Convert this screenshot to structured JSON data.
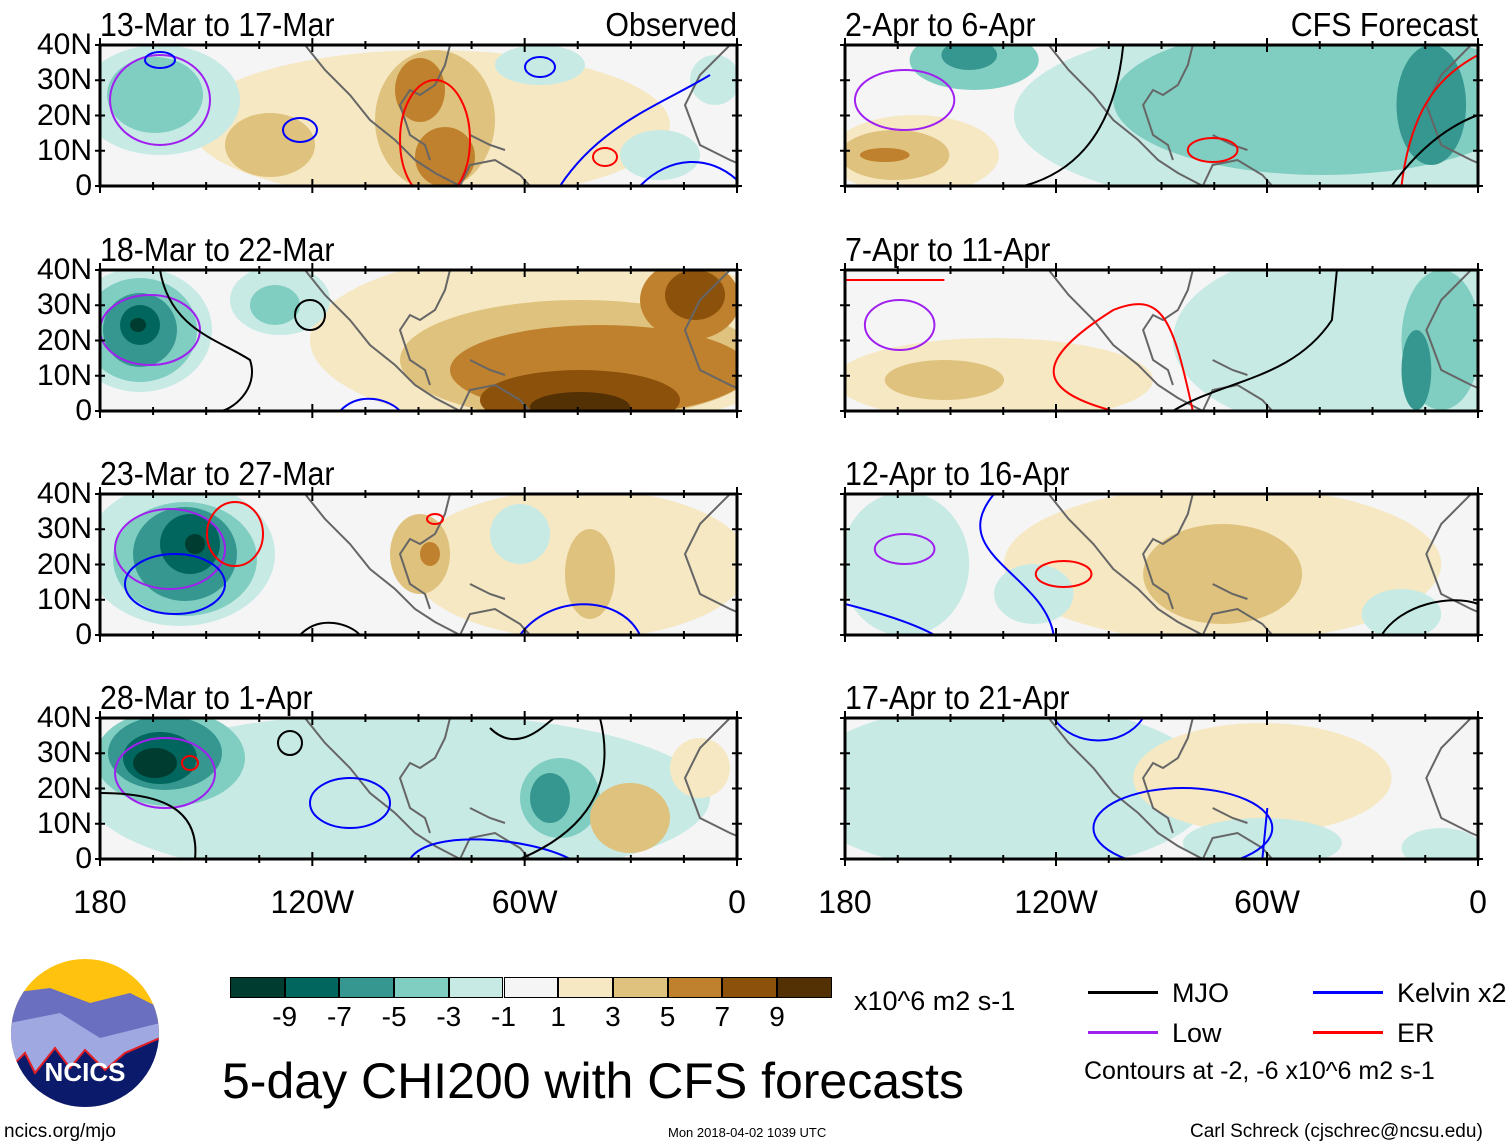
{
  "panels": [
    {
      "title": "13-Mar to 17-Mar",
      "tag": "Observed"
    },
    {
      "title": "2-Apr to 6-Apr",
      "tag": "CFS Forecast"
    },
    {
      "title": "18-Mar to 22-Mar"
    },
    {
      "title": "7-Apr to 11-Apr"
    },
    {
      "title": "23-Mar to 27-Mar"
    },
    {
      "title": "12-Apr to 16-Apr"
    },
    {
      "title": "28-Mar to 1-Apr"
    },
    {
      "title": "17-Apr to 21-Apr"
    }
  ],
  "y_ticks": [
    "40N",
    "30N",
    "20N",
    "10N",
    "0"
  ],
  "x_ticks": [
    "180",
    "120W",
    "60W",
    "0"
  ],
  "colorbar": {
    "colors": [
      "#003c30",
      "#01665e",
      "#35978f",
      "#80cdc1",
      "#c7eae5",
      "#f5f5f5",
      "#f6e8c3",
      "#dfc27d",
      "#bf812d",
      "#8c510a",
      "#543005"
    ],
    "labels": [
      "-9",
      "-7",
      "-5",
      "-3",
      "-1",
      "1",
      "3",
      "5",
      "7",
      "9"
    ],
    "units": "x10^6 m2 s-1"
  },
  "legend": {
    "items": [
      {
        "label": "MJO",
        "color": "#000000"
      },
      {
        "label": "Kelvin x2",
        "color": "#0000ff"
      },
      {
        "label": "Low",
        "color": "#a020f0"
      },
      {
        "label": "ER",
        "color": "#ff0000"
      }
    ],
    "note": "Contours at -2, -6 x10^6 m2 s-1"
  },
  "title": "5-day CHI200 with CFS forecasts",
  "logo_text": "NCICS",
  "footer": {
    "left": "ncics.org/mjo",
    "center": "Mon 2018-04-02 1039 UTC",
    "right": "Carl Schreck (cjschrec@ncsu.edu)"
  }
}
